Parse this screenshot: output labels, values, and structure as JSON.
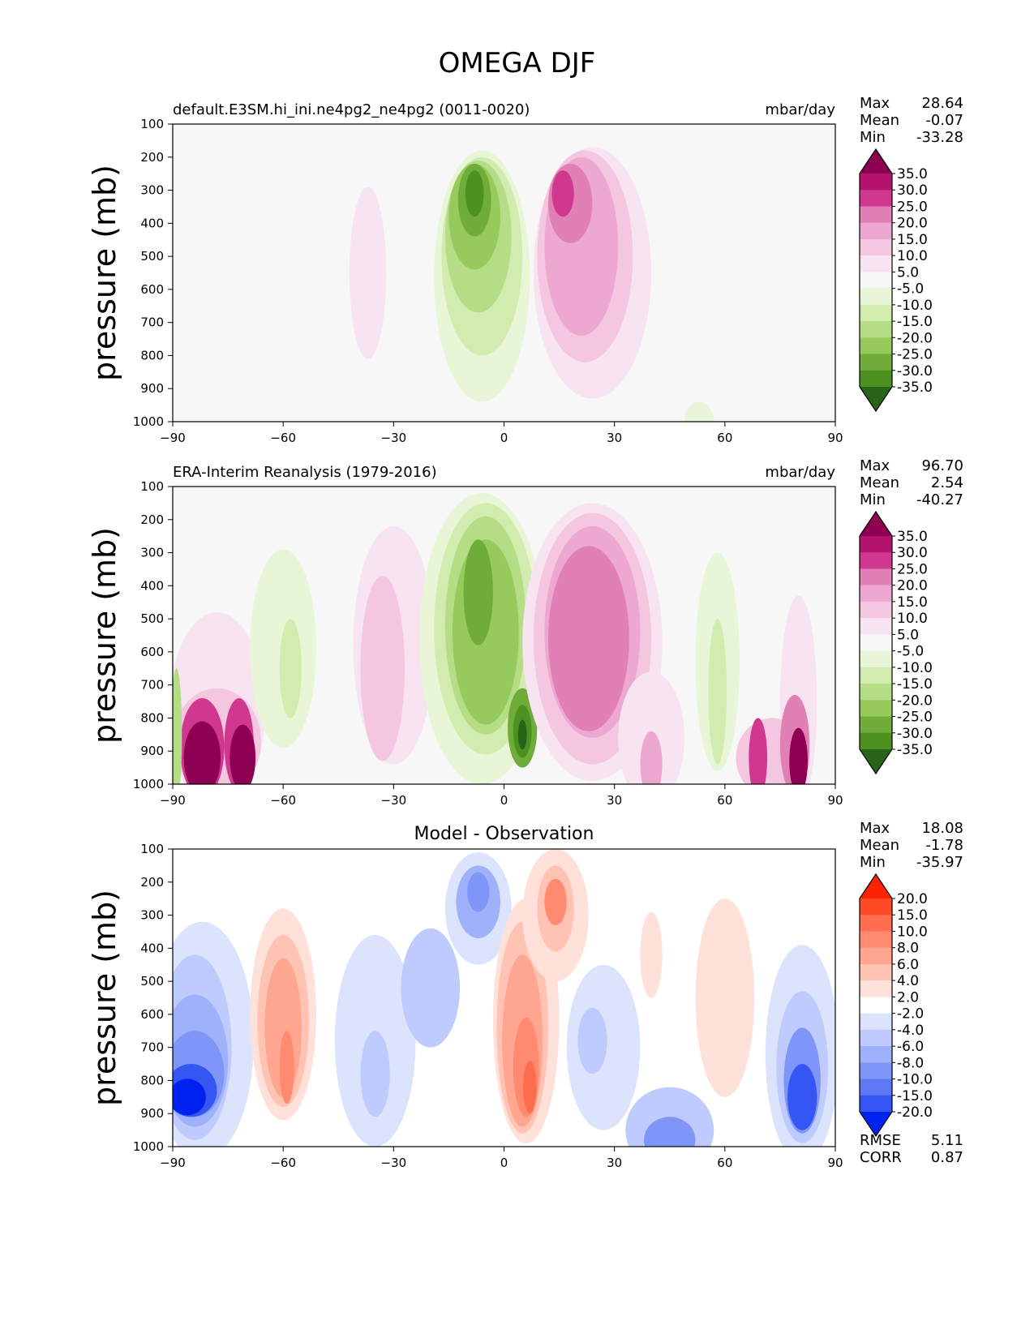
{
  "page_title": "OMEGA DJF",
  "chart_data": [
    {
      "type": "heatmap",
      "title": "default.E3SM.hi_ini.ne4pg2_ne4pg2 (0011-0020)",
      "units": "mbar/day",
      "ylabel": "pressure (mb)",
      "x_ticks": [
        "−90",
        "−60",
        "−30",
        "0",
        "30",
        "60",
        "90"
      ],
      "y_ticks": [
        "100",
        "200",
        "300",
        "400",
        "500",
        "600",
        "700",
        "800",
        "900",
        "1000"
      ],
      "xlim": [
        -90,
        90
      ],
      "ylim": [
        1000,
        100
      ],
      "stats": [
        {
          "label": "Max",
          "value": "28.64"
        },
        {
          "label": "Mean",
          "value": "-0.07"
        },
        {
          "label": "Min",
          "value": "-33.28"
        }
      ],
      "colorbar": {
        "labels": [
          "35.0",
          "30.0",
          "25.0",
          "20.0",
          "15.0",
          "10.0",
          "5.0",
          "-5.0",
          "-10.0",
          "-15.0",
          "-20.0",
          "-25.0",
          "-30.0",
          "-35.0"
        ],
        "colors": [
          "#8e0152",
          "#b4136d",
          "#d0378f",
          "#e180b5",
          "#eda8d1",
          "#f4c6e0",
          "#f8e4f0",
          "#f7f7f7",
          "#e8f5d7",
          "#d2ecb0",
          "#b4dd86",
          "#96ca5d",
          "#6fac3a",
          "#4d9221",
          "#276419"
        ]
      },
      "blobs": [
        {
          "x": -37,
          "p": 550,
          "rx": 5,
          "rp": 260,
          "level": 5
        },
        {
          "x": -6,
          "p": 560,
          "rx": 13,
          "rp": 380,
          "level": -5
        },
        {
          "x": -6,
          "p": 500,
          "rx": 11,
          "rp": 300,
          "level": -10
        },
        {
          "x": -7,
          "p": 440,
          "rx": 9,
          "rp": 230,
          "level": -15
        },
        {
          "x": -8,
          "p": 380,
          "rx": 7,
          "rp": 160,
          "level": -20
        },
        {
          "x": -8,
          "p": 330,
          "rx": 4.5,
          "rp": 110,
          "level": -25
        },
        {
          "x": -8,
          "p": 310,
          "rx": 2.5,
          "rp": 70,
          "level": -30
        },
        {
          "x": 24,
          "p": 550,
          "rx": 16,
          "rp": 380,
          "level": 5
        },
        {
          "x": 22,
          "p": 500,
          "rx": 13,
          "rp": 320,
          "level": 10
        },
        {
          "x": 21,
          "p": 470,
          "rx": 10,
          "rp": 270,
          "level": 15
        },
        {
          "x": 18,
          "p": 340,
          "rx": 6,
          "rp": 120,
          "level": 20
        },
        {
          "x": 16,
          "p": 310,
          "rx": 3,
          "rp": 70,
          "level": 25
        },
        {
          "x": 53,
          "p": 1000,
          "rx": 4,
          "rp": 60,
          "level": -5
        }
      ]
    },
    {
      "type": "heatmap",
      "title": "ERA-Interim Reanalysis (1979-2016)",
      "units": "mbar/day",
      "ylabel": "pressure (mb)",
      "x_ticks": [
        "−90",
        "−60",
        "−30",
        "0",
        "30",
        "60",
        "90"
      ],
      "y_ticks": [
        "100",
        "200",
        "300",
        "400",
        "500",
        "600",
        "700",
        "800",
        "900",
        "1000"
      ],
      "xlim": [
        -90,
        90
      ],
      "ylim": [
        1000,
        100
      ],
      "stats": [
        {
          "label": "Max",
          "value": "96.70"
        },
        {
          "label": "Mean",
          "value": "2.54"
        },
        {
          "label": "Min",
          "value": "-40.27"
        }
      ],
      "colorbar": {
        "labels": [
          "35.0",
          "30.0",
          "25.0",
          "20.0",
          "15.0",
          "10.0",
          "5.0",
          "-5.0",
          "-10.0",
          "-15.0",
          "-20.0",
          "-25.0",
          "-30.0",
          "-35.0"
        ],
        "colors": [
          "#8e0152",
          "#b4136d",
          "#d0378f",
          "#e180b5",
          "#eda8d1",
          "#f4c6e0",
          "#f8e4f0",
          "#f7f7f7",
          "#e8f5d7",
          "#d2ecb0",
          "#b4dd86",
          "#96ca5d",
          "#6fac3a",
          "#4d9221",
          "#276419"
        ]
      },
      "blobs": [
        {
          "x": -78,
          "p": 780,
          "rx": 13,
          "rp": 300,
          "level": 5
        },
        {
          "x": -78,
          "p": 870,
          "rx": 12,
          "rp": 160,
          "level": 10
        },
        {
          "x": -82,
          "p": 890,
          "rx": 6,
          "rp": 150,
          "level": 25
        },
        {
          "x": -72,
          "p": 880,
          "rx": 4,
          "rp": 140,
          "level": 25
        },
        {
          "x": -82,
          "p": 920,
          "rx": 5,
          "rp": 110,
          "level": 35
        },
        {
          "x": -71,
          "p": 920,
          "rx": 3.5,
          "rp": 100,
          "level": 35
        },
        {
          "x": -89,
          "p": 850,
          "rx": 1.5,
          "rp": 200,
          "level": -15
        },
        {
          "x": -60,
          "p": 590,
          "rx": 9,
          "rp": 300,
          "level": -5
        },
        {
          "x": -58,
          "p": 650,
          "rx": 3,
          "rp": 150,
          "level": -10
        },
        {
          "x": -30,
          "p": 580,
          "rx": 11,
          "rp": 360,
          "level": 5
        },
        {
          "x": -33,
          "p": 650,
          "rx": 6,
          "rp": 280,
          "level": 10
        },
        {
          "x": -6,
          "p": 560,
          "rx": 17,
          "rp": 440,
          "level": -5
        },
        {
          "x": -5,
          "p": 530,
          "rx": 14,
          "rp": 380,
          "level": -10
        },
        {
          "x": -5,
          "p": 520,
          "rx": 11,
          "rp": 330,
          "level": -15
        },
        {
          "x": -5,
          "p": 540,
          "rx": 9,
          "rp": 280,
          "level": -20
        },
        {
          "x": -7,
          "p": 420,
          "rx": 4,
          "rp": 160,
          "level": -25
        },
        {
          "x": 5,
          "p": 830,
          "rx": 4,
          "rp": 120,
          "level": -25
        },
        {
          "x": 5,
          "p": 840,
          "rx": 2.5,
          "rp": 80,
          "level": -30
        },
        {
          "x": 5,
          "p": 850,
          "rx": 1.2,
          "rp": 45,
          "level": -35
        },
        {
          "x": 24,
          "p": 570,
          "rx": 19,
          "rp": 420,
          "level": 5
        },
        {
          "x": 24,
          "p": 560,
          "rx": 16,
          "rp": 380,
          "level": 10
        },
        {
          "x": 24,
          "p": 540,
          "rx": 13,
          "rp": 320,
          "level": 15
        },
        {
          "x": 23,
          "p": 560,
          "rx": 11,
          "rp": 280,
          "level": 20
        },
        {
          "x": 40,
          "p": 860,
          "rx": 9,
          "rp": 200,
          "level": 5
        },
        {
          "x": 40,
          "p": 940,
          "rx": 3,
          "rp": 100,
          "level": 15
        },
        {
          "x": 58,
          "p": 630,
          "rx": 6,
          "rp": 330,
          "level": -5
        },
        {
          "x": 58,
          "p": 720,
          "rx": 2.5,
          "rp": 220,
          "level": -10
        },
        {
          "x": 80,
          "p": 750,
          "rx": 5,
          "rp": 320,
          "level": 5
        },
        {
          "x": 73,
          "p": 920,
          "rx": 10,
          "rp": 120,
          "level": 10
        },
        {
          "x": 79,
          "p": 880,
          "rx": 4,
          "rp": 150,
          "level": 20
        },
        {
          "x": 69,
          "p": 920,
          "rx": 2.5,
          "rp": 120,
          "level": 25
        },
        {
          "x": 80,
          "p": 930,
          "rx": 2.5,
          "rp": 100,
          "level": 35
        }
      ]
    },
    {
      "type": "heatmap",
      "title": "Model - Observation",
      "units": "",
      "ylabel": "pressure (mb)",
      "x_ticks": [
        "−90",
        "−60",
        "−30",
        "0",
        "30",
        "60",
        "90"
      ],
      "y_ticks": [
        "100",
        "200",
        "300",
        "400",
        "500",
        "600",
        "700",
        "800",
        "900",
        "1000"
      ],
      "xlim": [
        -90,
        90
      ],
      "ylim": [
        1000,
        100
      ],
      "stats": [
        {
          "label": "Max",
          "value": "18.08"
        },
        {
          "label": "Mean",
          "value": "-1.78"
        },
        {
          "label": "Min",
          "value": "-35.97"
        }
      ],
      "extra_stats": [
        {
          "label": "RMSE",
          "value": "5.11"
        },
        {
          "label": "CORR",
          "value": "0.87"
        }
      ],
      "colorbar": {
        "labels": [
          "20.0",
          "15.0",
          "10.0",
          "8.0",
          "6.0",
          "4.0",
          "2.0",
          "-2.0",
          "-4.0",
          "-6.0",
          "-8.0",
          "-10.0",
          "-15.0",
          "-20.0"
        ],
        "colors": [
          "#ff2200",
          "#ff4a26",
          "#ff6d4f",
          "#ff8a70",
          "#ffa690",
          "#ffc3b3",
          "#ffe1d9",
          "#ffffff",
          "#dce3fd",
          "#bfcbfc",
          "#9fb1fa",
          "#7f96f8",
          "#5c78f5",
          "#3556f2",
          "#0022f0"
        ]
      },
      "blobs": [
        {
          "x": -82,
          "p": 680,
          "rx": 14,
          "rp": 360,
          "level": -2
        },
        {
          "x": -84,
          "p": 700,
          "rx": 10,
          "rp": 280,
          "level": -4
        },
        {
          "x": -84,
          "p": 740,
          "rx": 9,
          "rp": 200,
          "level": -6
        },
        {
          "x": -84,
          "p": 780,
          "rx": 8,
          "rp": 130,
          "level": -8
        },
        {
          "x": -85,
          "p": 830,
          "rx": 7,
          "rp": 80,
          "level": -15
        },
        {
          "x": -86,
          "p": 850,
          "rx": 5,
          "rp": 55,
          "level": -20
        },
        {
          "x": -60,
          "p": 600,
          "rx": 9,
          "rp": 320,
          "level": 2
        },
        {
          "x": -60,
          "p": 620,
          "rx": 7,
          "rp": 260,
          "level": 4
        },
        {
          "x": -60,
          "p": 640,
          "rx": 5,
          "rp": 210,
          "level": 6
        },
        {
          "x": -59,
          "p": 760,
          "rx": 2,
          "rp": 110,
          "level": 8
        },
        {
          "x": -35,
          "p": 680,
          "rx": 11,
          "rp": 320,
          "level": -2
        },
        {
          "x": -35,
          "p": 780,
          "rx": 4,
          "rp": 130,
          "level": -4
        },
        {
          "x": -20,
          "p": 520,
          "rx": 8,
          "rp": 180,
          "level": -4
        },
        {
          "x": -7,
          "p": 280,
          "rx": 9,
          "rp": 170,
          "level": -2
        },
        {
          "x": -7,
          "p": 260,
          "rx": 6,
          "rp": 110,
          "level": -6
        },
        {
          "x": -7,
          "p": 230,
          "rx": 3,
          "rp": 60,
          "level": -8
        },
        {
          "x": 6,
          "p": 620,
          "rx": 9,
          "rp": 370,
          "level": 2
        },
        {
          "x": 5,
          "p": 640,
          "rx": 7,
          "rp": 320,
          "level": 4
        },
        {
          "x": 5,
          "p": 680,
          "rx": 5.5,
          "rp": 260,
          "level": 6
        },
        {
          "x": 6,
          "p": 760,
          "rx": 3.5,
          "rp": 150,
          "level": 8
        },
        {
          "x": 7,
          "p": 820,
          "rx": 1.8,
          "rp": 80,
          "level": 10
        },
        {
          "x": 14,
          "p": 300,
          "rx": 9,
          "rp": 200,
          "level": 2
        },
        {
          "x": 14,
          "p": 280,
          "rx": 5,
          "rp": 130,
          "level": 4
        },
        {
          "x": 14,
          "p": 260,
          "rx": 3,
          "rp": 70,
          "level": 8
        },
        {
          "x": 27,
          "p": 700,
          "rx": 10,
          "rp": 250,
          "level": -2
        },
        {
          "x": 24,
          "p": 680,
          "rx": 4,
          "rp": 100,
          "level": -4
        },
        {
          "x": 40,
          "p": 420,
          "rx": 3,
          "rp": 130,
          "level": 2
        },
        {
          "x": 45,
          "p": 950,
          "rx": 12,
          "rp": 130,
          "level": -4
        },
        {
          "x": 45,
          "p": 980,
          "rx": 7,
          "rp": 70,
          "level": -8
        },
        {
          "x": 60,
          "p": 550,
          "rx": 8,
          "rp": 300,
          "level": 2
        },
        {
          "x": 81,
          "p": 720,
          "rx": 10,
          "rp": 330,
          "level": -2
        },
        {
          "x": 81,
          "p": 760,
          "rx": 7,
          "rp": 230,
          "level": -4
        },
        {
          "x": 81,
          "p": 800,
          "rx": 5,
          "rp": 160,
          "level": -8
        },
        {
          "x": 81,
          "p": 850,
          "rx": 4,
          "rp": 100,
          "level": -15
        }
      ]
    }
  ]
}
